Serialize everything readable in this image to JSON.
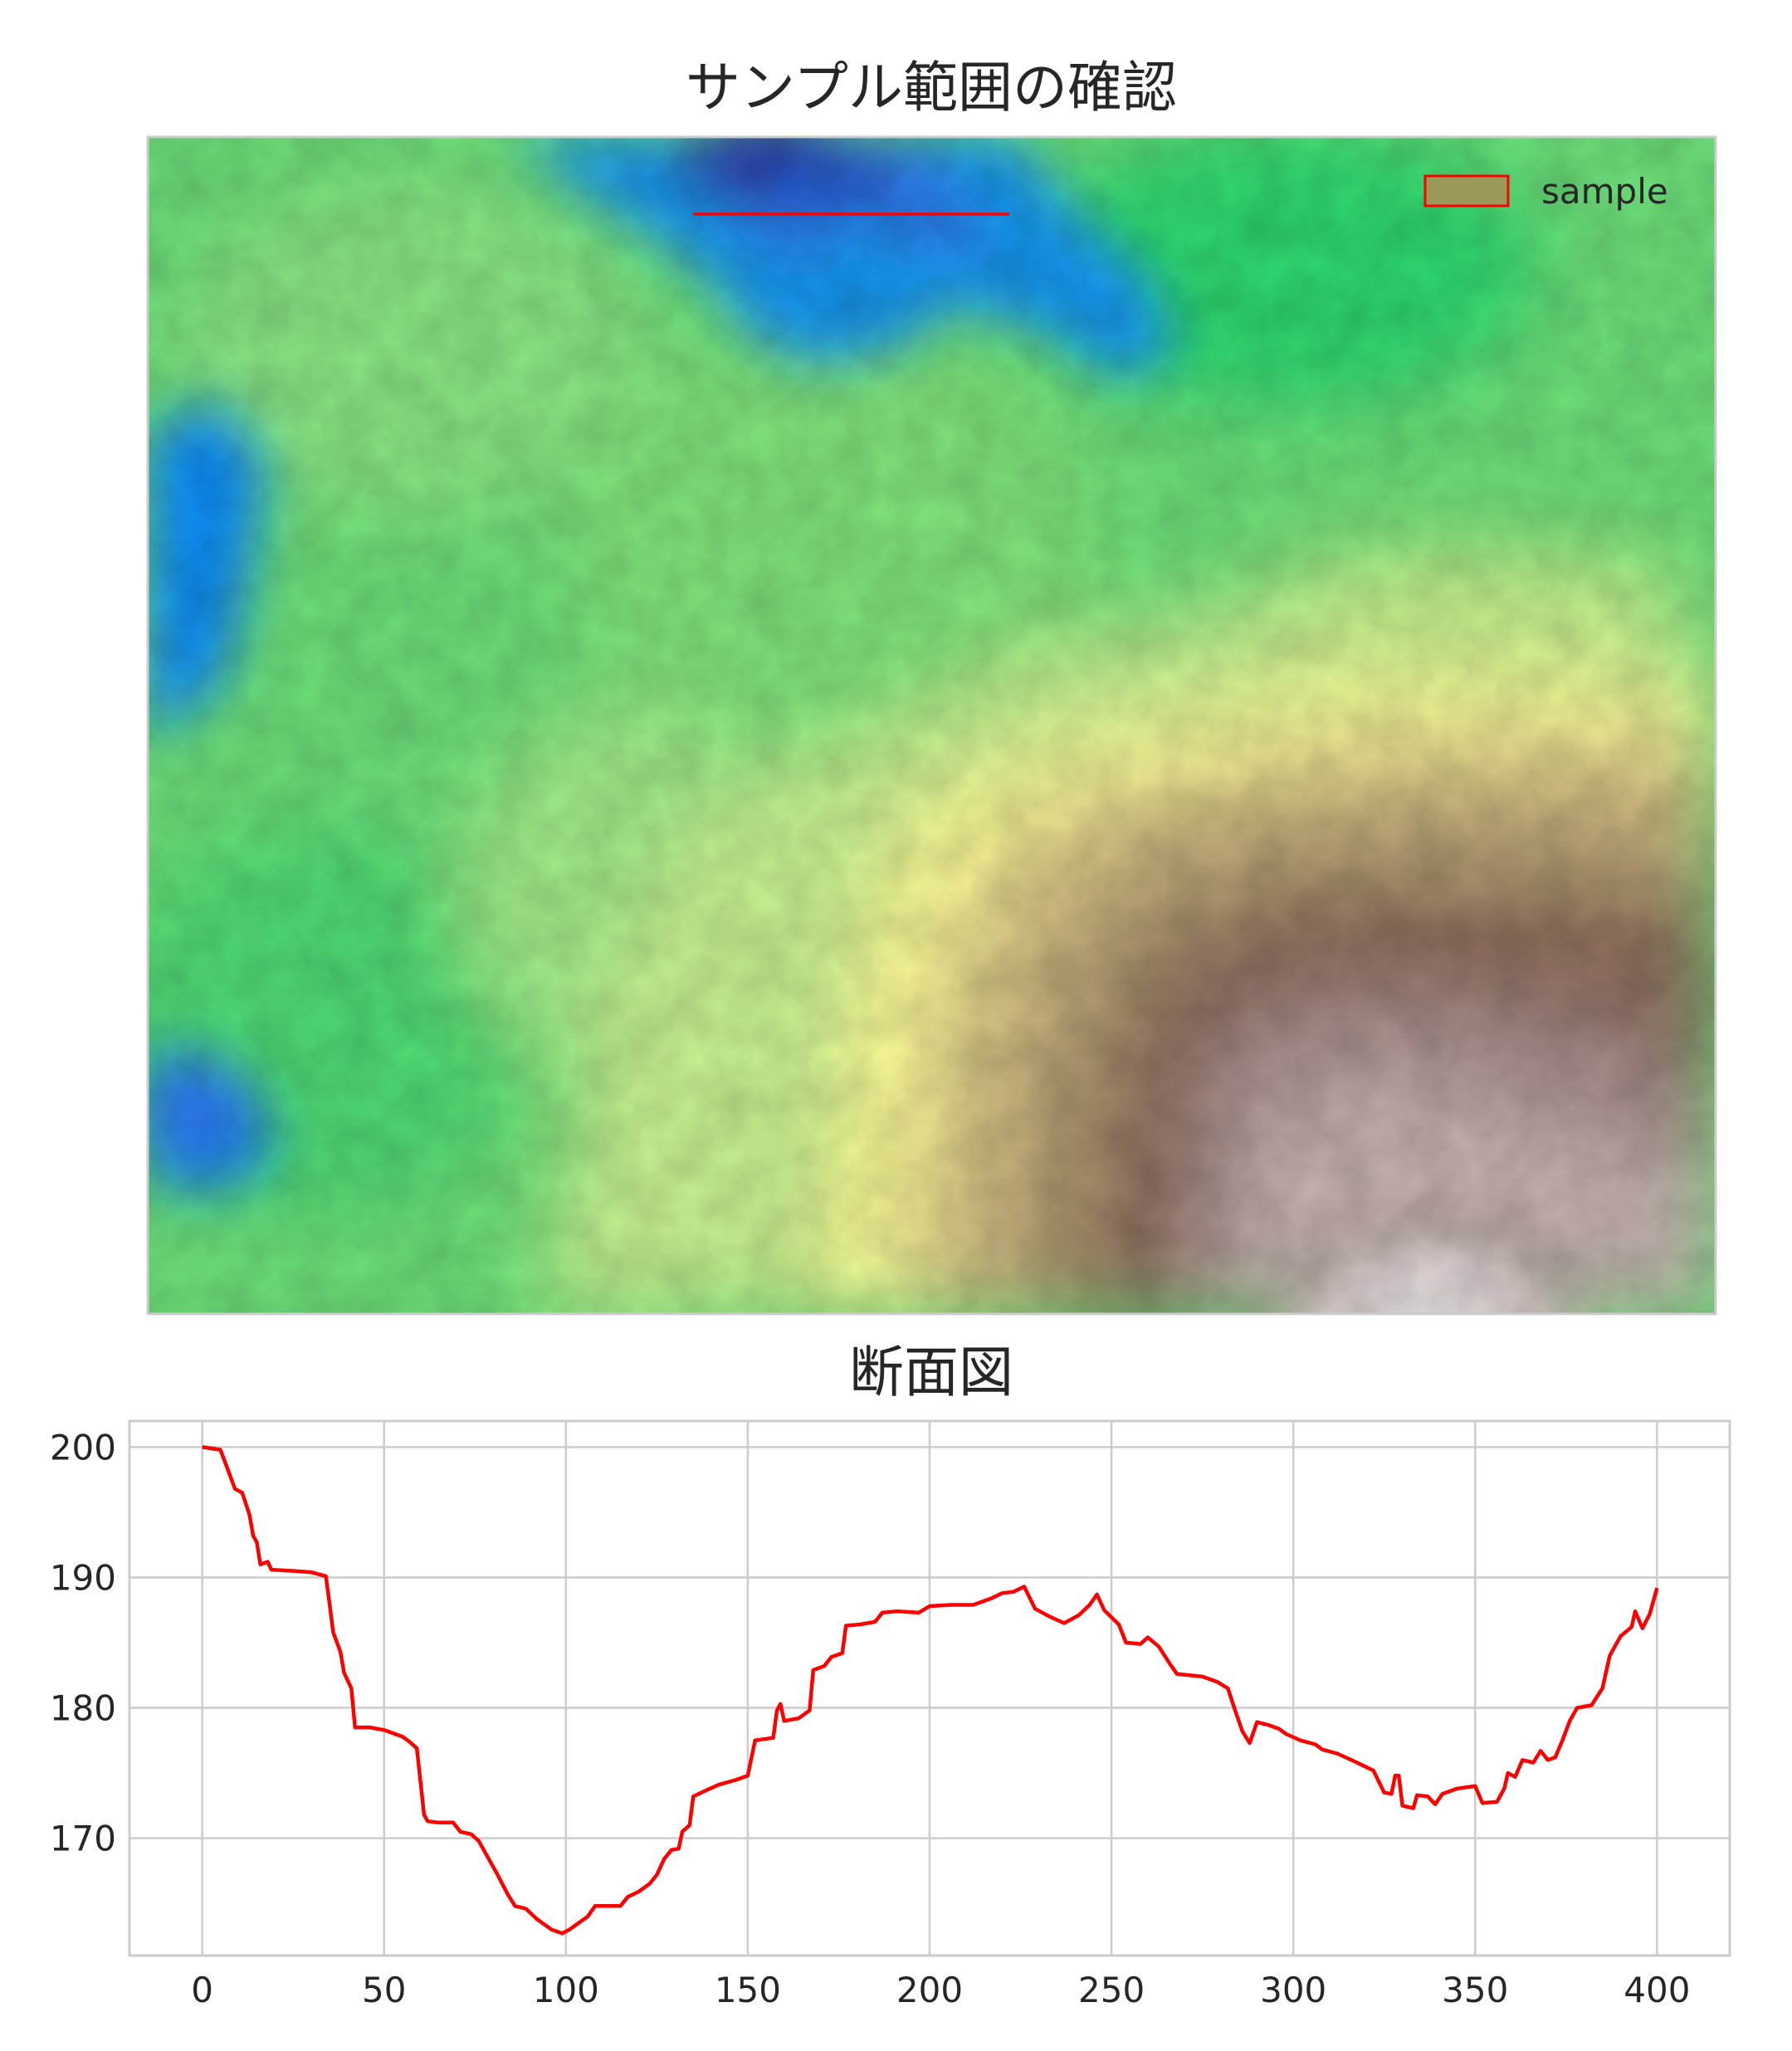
{
  "chart_data": [
    {
      "type": "heatmap",
      "title": "サンプル範囲の確認",
      "colormap": "terrain",
      "axes_visible": false,
      "legend": {
        "position": "top-right",
        "entries": [
          {
            "label": "sample",
            "facecolor": "#999a5a",
            "edgecolor": "#ff0000"
          }
        ]
      },
      "line_color": "#ff0000"
    },
    {
      "type": "line",
      "title": "断面図",
      "xlabel": "",
      "ylabel": "",
      "xlim": [
        -20,
        420
      ],
      "ylim": [
        161,
        202
      ],
      "xticks": [
        "0",
        "50",
        "100",
        "150",
        "200",
        "250",
        "300",
        "350",
        "400"
      ],
      "yticks": [
        "170",
        "180",
        "190",
        "200"
      ],
      "grid": true,
      "series": [
        {
          "color": "#ff0000",
          "points": [
            [
              0,
              200.0
            ],
            [
              5,
              199.8
            ],
            [
              7,
              198.3
            ],
            [
              9,
              196.8
            ],
            [
              11,
              196.5
            ],
            [
              13,
              194.8
            ],
            [
              14,
              193.2
            ],
            [
              15,
              192.7
            ],
            [
              16,
              191.0
            ],
            [
              18,
              191.2
            ],
            [
              19,
              190.6
            ],
            [
              25,
              190.5
            ],
            [
              30,
              190.4
            ],
            [
              34,
              190.1
            ],
            [
              35,
              188.0
            ],
            [
              36,
              185.8
            ],
            [
              38,
              184.3
            ],
            [
              39,
              182.7
            ],
            [
              41,
              181.5
            ],
            [
              42,
              178.5
            ],
            [
              46,
              178.5
            ],
            [
              50,
              178.3
            ],
            [
              55,
              177.8
            ],
            [
              57,
              177.4
            ],
            [
              59,
              176.9
            ],
            [
              61,
              171.8
            ],
            [
              62,
              171.3
            ],
            [
              65,
              171.2
            ],
            [
              69,
              171.2
            ],
            [
              71,
              170.5
            ],
            [
              74,
              170.3
            ],
            [
              76,
              169.8
            ],
            [
              79,
              168.3
            ],
            [
              81,
              167.3
            ],
            [
              84,
              165.7
            ],
            [
              86,
              164.8
            ],
            [
              89,
              164.6
            ],
            [
              92,
              163.8
            ],
            [
              96,
              163.0
            ],
            [
              99,
              162.7
            ],
            [
              101,
              163.0
            ],
            [
              104,
              163.6
            ],
            [
              106,
              164.0
            ],
            [
              108,
              164.8
            ],
            [
              111,
              164.8
            ],
            [
              115,
              164.8
            ],
            [
              117,
              165.5
            ],
            [
              120,
              165.9
            ],
            [
              123,
              166.5
            ],
            [
              125,
              167.2
            ],
            [
              127,
              168.4
            ],
            [
              129,
              169.1
            ],
            [
              131,
              169.2
            ],
            [
              132,
              170.5
            ],
            [
              134,
              171.0
            ],
            [
              135,
              173.2
            ],
            [
              138,
              173.6
            ],
            [
              142,
              174.1
            ],
            [
              147,
              174.5
            ],
            [
              150,
              174.8
            ],
            [
              152,
              177.5
            ],
            [
              157,
              177.7
            ],
            [
              158,
              179.8
            ],
            [
              159,
              180.3
            ],
            [
              160,
              179.0
            ],
            [
              164,
              179.2
            ],
            [
              167,
              179.8
            ],
            [
              168,
              182.9
            ],
            [
              171,
              183.2
            ],
            [
              173,
              183.9
            ],
            [
              176,
              184.2
            ],
            [
              177,
              186.3
            ],
            [
              181,
              186.4
            ],
            [
              185,
              186.6
            ],
            [
              187,
              187.3
            ],
            [
              191,
              187.4
            ],
            [
              197,
              187.3
            ],
            [
              200,
              187.8
            ],
            [
              206,
              187.9
            ],
            [
              212,
              187.9
            ],
            [
              217,
              188.4
            ],
            [
              220,
              188.8
            ],
            [
              223,
              188.9
            ],
            [
              226,
              189.3
            ],
            [
              229,
              187.6
            ],
            [
              233,
              187.0
            ],
            [
              237,
              186.5
            ],
            [
              241,
              187.1
            ],
            [
              244,
              187.9
            ],
            [
              246,
              188.7
            ],
            [
              248,
              187.5
            ],
            [
              252,
              186.4
            ],
            [
              254,
              185.0
            ],
            [
              258,
              184.9
            ],
            [
              260,
              185.4
            ],
            [
              263,
              184.7
            ],
            [
              266,
              183.4
            ],
            [
              268,
              182.6
            ],
            [
              275,
              182.4
            ],
            [
              279,
              182.0
            ],
            [
              282,
              181.5
            ],
            [
              284,
              179.8
            ],
            [
              286,
              178.2
            ],
            [
              288,
              177.3
            ],
            [
              290,
              178.9
            ],
            [
              293,
              178.7
            ],
            [
              296,
              178.4
            ],
            [
              298,
              178.0
            ],
            [
              302,
              177.5
            ],
            [
              306,
              177.2
            ],
            [
              308,
              176.8
            ],
            [
              312,
              176.5
            ],
            [
              316,
              176.0
            ],
            [
              319,
              175.6
            ],
            [
              322,
              175.2
            ],
            [
              325,
              173.5
            ],
            [
              327,
              173.4
            ],
            [
              328,
              174.8
            ],
            [
              329,
              174.8
            ],
            [
              330,
              172.5
            ],
            [
              333,
              172.3
            ],
            [
              334,
              173.3
            ],
            [
              337,
              173.2
            ],
            [
              339,
              172.6
            ],
            [
              341,
              173.4
            ],
            [
              345,
              173.8
            ],
            [
              350,
              174.0
            ],
            [
              352,
              172.7
            ],
            [
              356,
              172.8
            ],
            [
              358,
              173.8
            ],
            [
              359,
              175.0
            ],
            [
              361,
              174.7
            ],
            [
              363,
              176.0
            ],
            [
              366,
              175.8
            ],
            [
              368,
              176.7
            ],
            [
              370,
              176.0
            ],
            [
              372,
              176.2
            ],
            [
              374,
              177.5
            ],
            [
              376,
              179.0
            ],
            [
              378,
              180.0
            ],
            [
              382,
              180.2
            ],
            [
              385,
              181.5
            ],
            [
              387,
              184.0
            ],
            [
              390,
              185.5
            ],
            [
              393,
              186.2
            ],
            [
              394,
              187.4
            ],
            [
              396,
              186.1
            ],
            [
              398,
              187.2
            ],
            [
              400,
              189.2
            ]
          ]
        }
      ]
    }
  ]
}
